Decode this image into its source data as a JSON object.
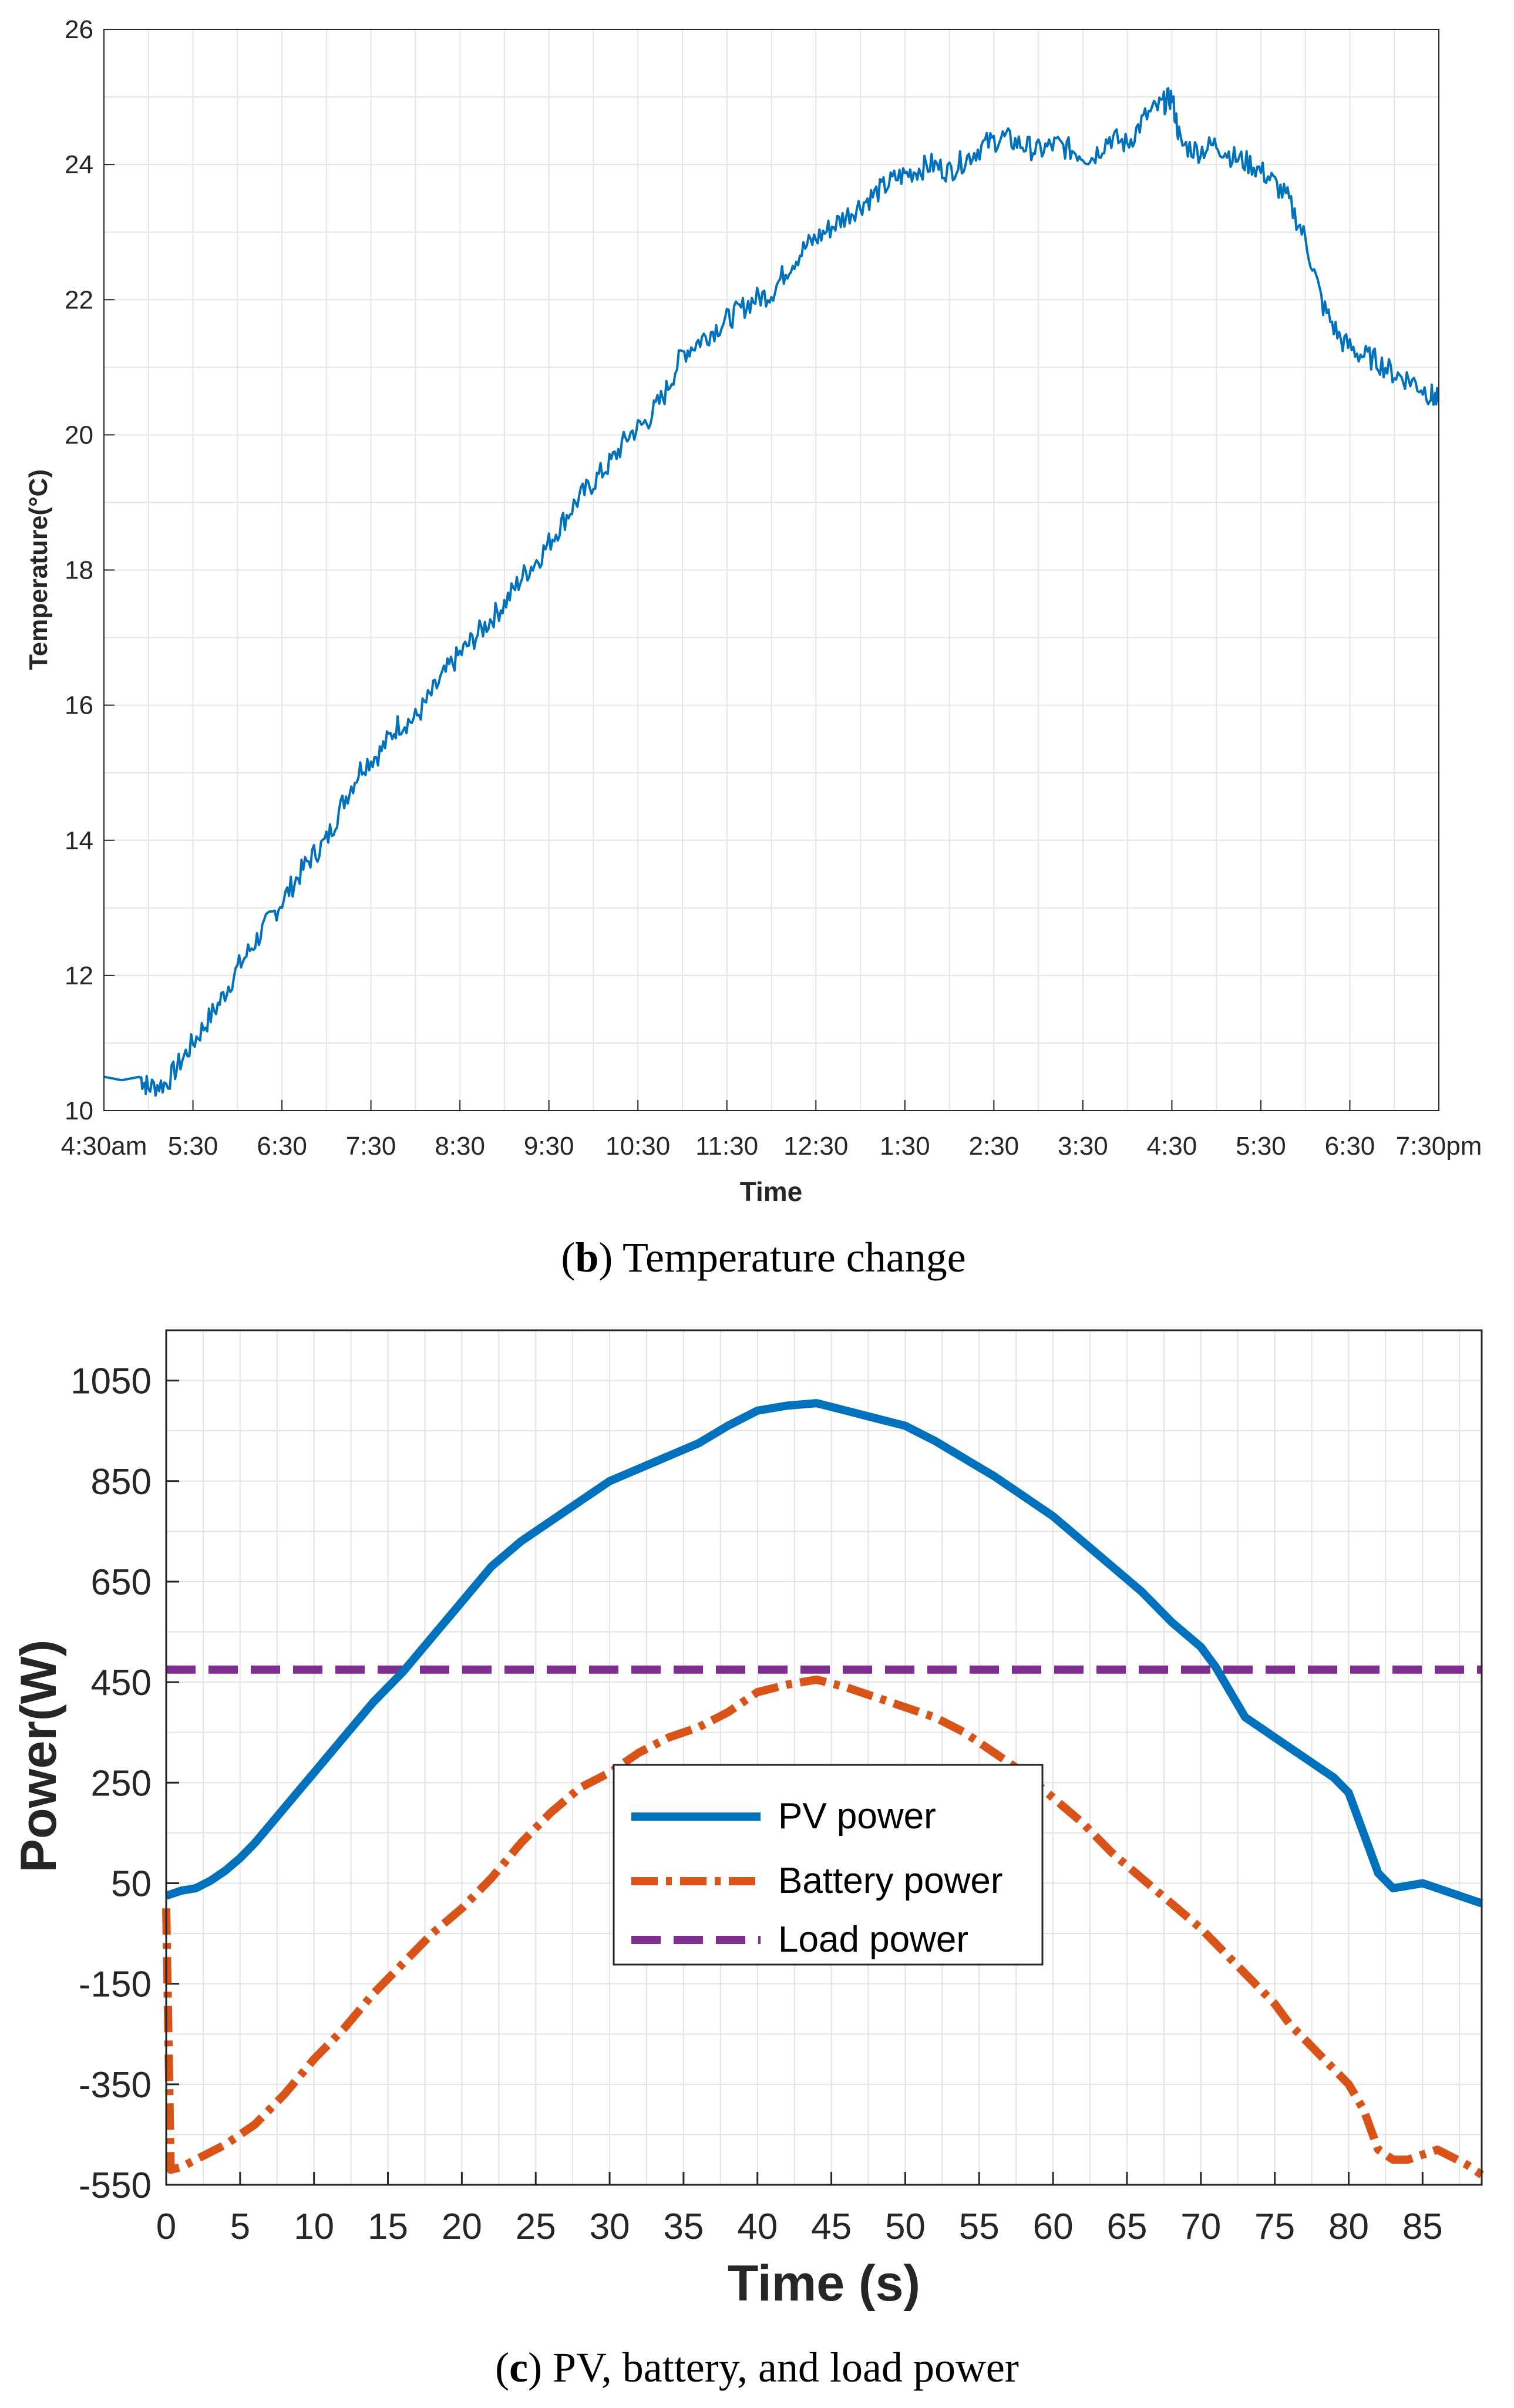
{
  "chart_data": [
    {
      "type": "line",
      "panel": "b",
      "caption_label": "b",
      "caption_text": ") Temperature change",
      "xlabel": "Time",
      "ylabel": "Temperature(°C)",
      "xlim": [
        4.5,
        19.5
      ],
      "ylim": [
        10,
        26
      ],
      "yticks": [
        10,
        12,
        14,
        16,
        18,
        20,
        22,
        24,
        26
      ],
      "xticks": [
        {
          "v": 4.5,
          "label": "4:30am"
        },
        {
          "v": 5.5,
          "label": "5:30"
        },
        {
          "v": 6.5,
          "label": "6:30"
        },
        {
          "v": 7.5,
          "label": "7:30"
        },
        {
          "v": 8.5,
          "label": "8:30"
        },
        {
          "v": 9.5,
          "label": "9:30"
        },
        {
          "v": 10.5,
          "label": "10:30"
        },
        {
          "v": 11.5,
          "label": "11:30"
        },
        {
          "v": 12.5,
          "label": "12:30"
        },
        {
          "v": 13.5,
          "label": "1:30"
        },
        {
          "v": 14.5,
          "label": "2:30"
        },
        {
          "v": 15.5,
          "label": "3:30"
        },
        {
          "v": 16.5,
          "label": "4:30"
        },
        {
          "v": 17.5,
          "label": "5:30"
        },
        {
          "v": 18.5,
          "label": "6:30"
        },
        {
          "v": 19.5,
          "label": "7:30pm"
        }
      ],
      "grid": true,
      "series": [
        {
          "name": "Temperature",
          "color": "#0072BD",
          "x": [
            4.5,
            4.7,
            4.9,
            5.0,
            5.2,
            5.4,
            5.6,
            5.8,
            6.0,
            6.2,
            6.4,
            6.6,
            6.8,
            7.0,
            7.2,
            7.4,
            7.6,
            7.8,
            8.0,
            8.2,
            8.4,
            8.6,
            8.8,
            9.0,
            9.2,
            9.4,
            9.6,
            9.8,
            10.0,
            10.2,
            10.4,
            10.6,
            10.8,
            11.0,
            11.2,
            11.4,
            11.6,
            11.8,
            12.0,
            12.2,
            12.4,
            12.6,
            12.8,
            13.0,
            13.2,
            13.4,
            13.6,
            13.8,
            14.0,
            14.2,
            14.4,
            14.6,
            14.8,
            15.0,
            15.2,
            15.4,
            15.6,
            15.8,
            16.0,
            16.2,
            16.4,
            16.5,
            16.6,
            16.8,
            17.0,
            17.2,
            17.4,
            17.6,
            17.8,
            18.0,
            18.2,
            18.4,
            18.6,
            18.8,
            19.0,
            19.2,
            19.4,
            19.5
          ],
          "y": [
            10.5,
            10.45,
            10.5,
            10.35,
            10.4,
            10.8,
            11.2,
            11.6,
            12.1,
            12.5,
            12.9,
            13.3,
            13.7,
            14.0,
            14.6,
            15.1,
            15.3,
            15.7,
            15.8,
            16.2,
            16.6,
            16.9,
            17.2,
            17.5,
            17.9,
            18.2,
            18.6,
            19.0,
            19.3,
            19.6,
            20.0,
            20.2,
            20.6,
            21.2,
            21.4,
            21.6,
            21.8,
            22.0,
            22.1,
            22.5,
            22.8,
            23.0,
            23.2,
            23.4,
            23.6,
            23.8,
            23.9,
            24.0,
            23.9,
            24.1,
            24.3,
            24.4,
            24.3,
            24.2,
            24.3,
            24.2,
            24.1,
            24.4,
            24.3,
            24.7,
            24.9,
            25.0,
            24.3,
            24.2,
            24.3,
            24.1,
            24.0,
            23.8,
            23.5,
            22.9,
            21.9,
            21.4,
            21.2,
            21.1,
            20.9,
            20.8,
            20.6,
            20.5
          ]
        }
      ]
    },
    {
      "type": "line",
      "panel": "c",
      "caption_label": "c",
      "caption_text": ") PV, battery, and load power",
      "xlabel": "Time (s)",
      "ylabel": "Power(W)",
      "xlim": [
        0,
        89
      ],
      "ylim": [
        -550,
        1150
      ],
      "xticks": [
        0,
        5,
        10,
        15,
        20,
        25,
        30,
        35,
        40,
        45,
        50,
        55,
        60,
        65,
        70,
        75,
        80,
        85
      ],
      "yticks": [
        -550,
        -350,
        -150,
        50,
        250,
        450,
        650,
        850,
        1050
      ],
      "grid": true,
      "legend": "lower-center",
      "series": [
        {
          "name": "PV power",
          "color": "#0072BD",
          "style": "solid",
          "x": [
            0,
            1,
            2,
            3,
            4,
            5,
            6,
            8,
            10,
            12,
            14,
            16,
            18,
            20,
            22,
            24,
            26,
            28,
            30,
            32,
            34,
            36,
            38,
            40,
            42,
            44,
            46,
            48,
            50,
            52,
            54,
            56,
            58,
            60,
            62,
            64,
            66,
            68,
            70,
            71,
            72,
            73,
            74,
            75,
            76,
            77,
            78,
            79,
            80,
            81,
            82,
            83,
            84,
            85,
            86,
            87,
            88,
            89
          ],
          "y": [
            25,
            35,
            40,
            55,
            75,
            100,
            130,
            200,
            270,
            340,
            410,
            470,
            540,
            610,
            680,
            730,
            770,
            810,
            850,
            875,
            900,
            925,
            960,
            990,
            1000,
            1005,
            990,
            975,
            960,
            930,
            895,
            860,
            820,
            780,
            730,
            680,
            630,
            570,
            520,
            480,
            430,
            380,
            360,
            340,
            320,
            300,
            280,
            260,
            230,
            150,
            70,
            40,
            45,
            50,
            40,
            30,
            20,
            10
          ]
        },
        {
          "name": "Battery power",
          "color": "#D95319",
          "style": "dashdot",
          "x": [
            0,
            0.3,
            1,
            2,
            4,
            6,
            8,
            10,
            12,
            14,
            16,
            18,
            20,
            22,
            24,
            26,
            28,
            30,
            32,
            34,
            36,
            38,
            40,
            42,
            44,
            46,
            48,
            50,
            52,
            54,
            56,
            58,
            60,
            62,
            64,
            66,
            68,
            70,
            71,
            72,
            73,
            74,
            75,
            76,
            77,
            78,
            79,
            80,
            81,
            82,
            83,
            84,
            85,
            86,
            87,
            88,
            89
          ],
          "y": [
            0,
            -520,
            -515,
            -500,
            -470,
            -430,
            -370,
            -300,
            -240,
            -170,
            -110,
            -50,
            0,
            60,
            130,
            190,
            240,
            270,
            310,
            340,
            360,
            390,
            430,
            445,
            455,
            440,
            420,
            400,
            380,
            350,
            310,
            270,
            220,
            170,
            110,
            60,
            10,
            -40,
            -70,
            -100,
            -130,
            -160,
            -190,
            -230,
            -260,
            -290,
            -320,
            -350,
            -400,
            -480,
            -500,
            -500,
            -490,
            -480,
            -495,
            -510,
            -530
          ]
        },
        {
          "name": "Load power",
          "color": "#7E2F8E",
          "style": "dashed",
          "x": [
            0,
            89
          ],
          "y": [
            475,
            475
          ]
        }
      ]
    }
  ]
}
